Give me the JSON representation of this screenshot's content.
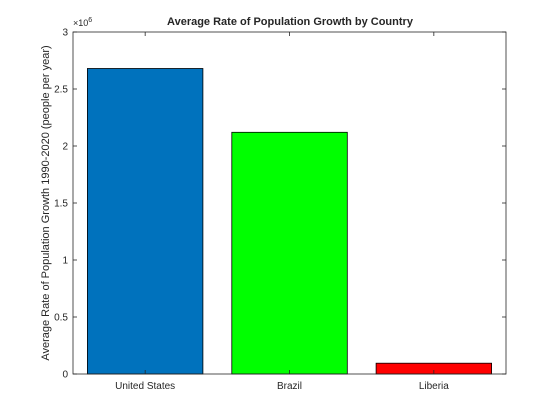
{
  "chart_data": {
    "type": "bar",
    "title": "Average Rate of Population Growth by Country",
    "xlabel": "",
    "ylabel": "Average Rate of Population Growth 1990-2020 (people per year)",
    "categories": [
      "United States",
      "Brazil",
      "Liberia"
    ],
    "values": [
      2680000,
      2120000,
      95000
    ],
    "colors": [
      "#0072bd",
      "#00ff00",
      "#ff0000"
    ],
    "ylim": [
      0,
      3000000
    ],
    "yticks": [
      0,
      500000,
      1000000,
      1500000,
      2000000,
      2500000,
      3000000
    ],
    "ytick_labels": [
      "0",
      "0.5",
      "1",
      "1.5",
      "2",
      "2.5",
      "3"
    ],
    "y_exponent_base": "×10",
    "y_exponent_power": "6",
    "grid": false,
    "legend": "none"
  }
}
